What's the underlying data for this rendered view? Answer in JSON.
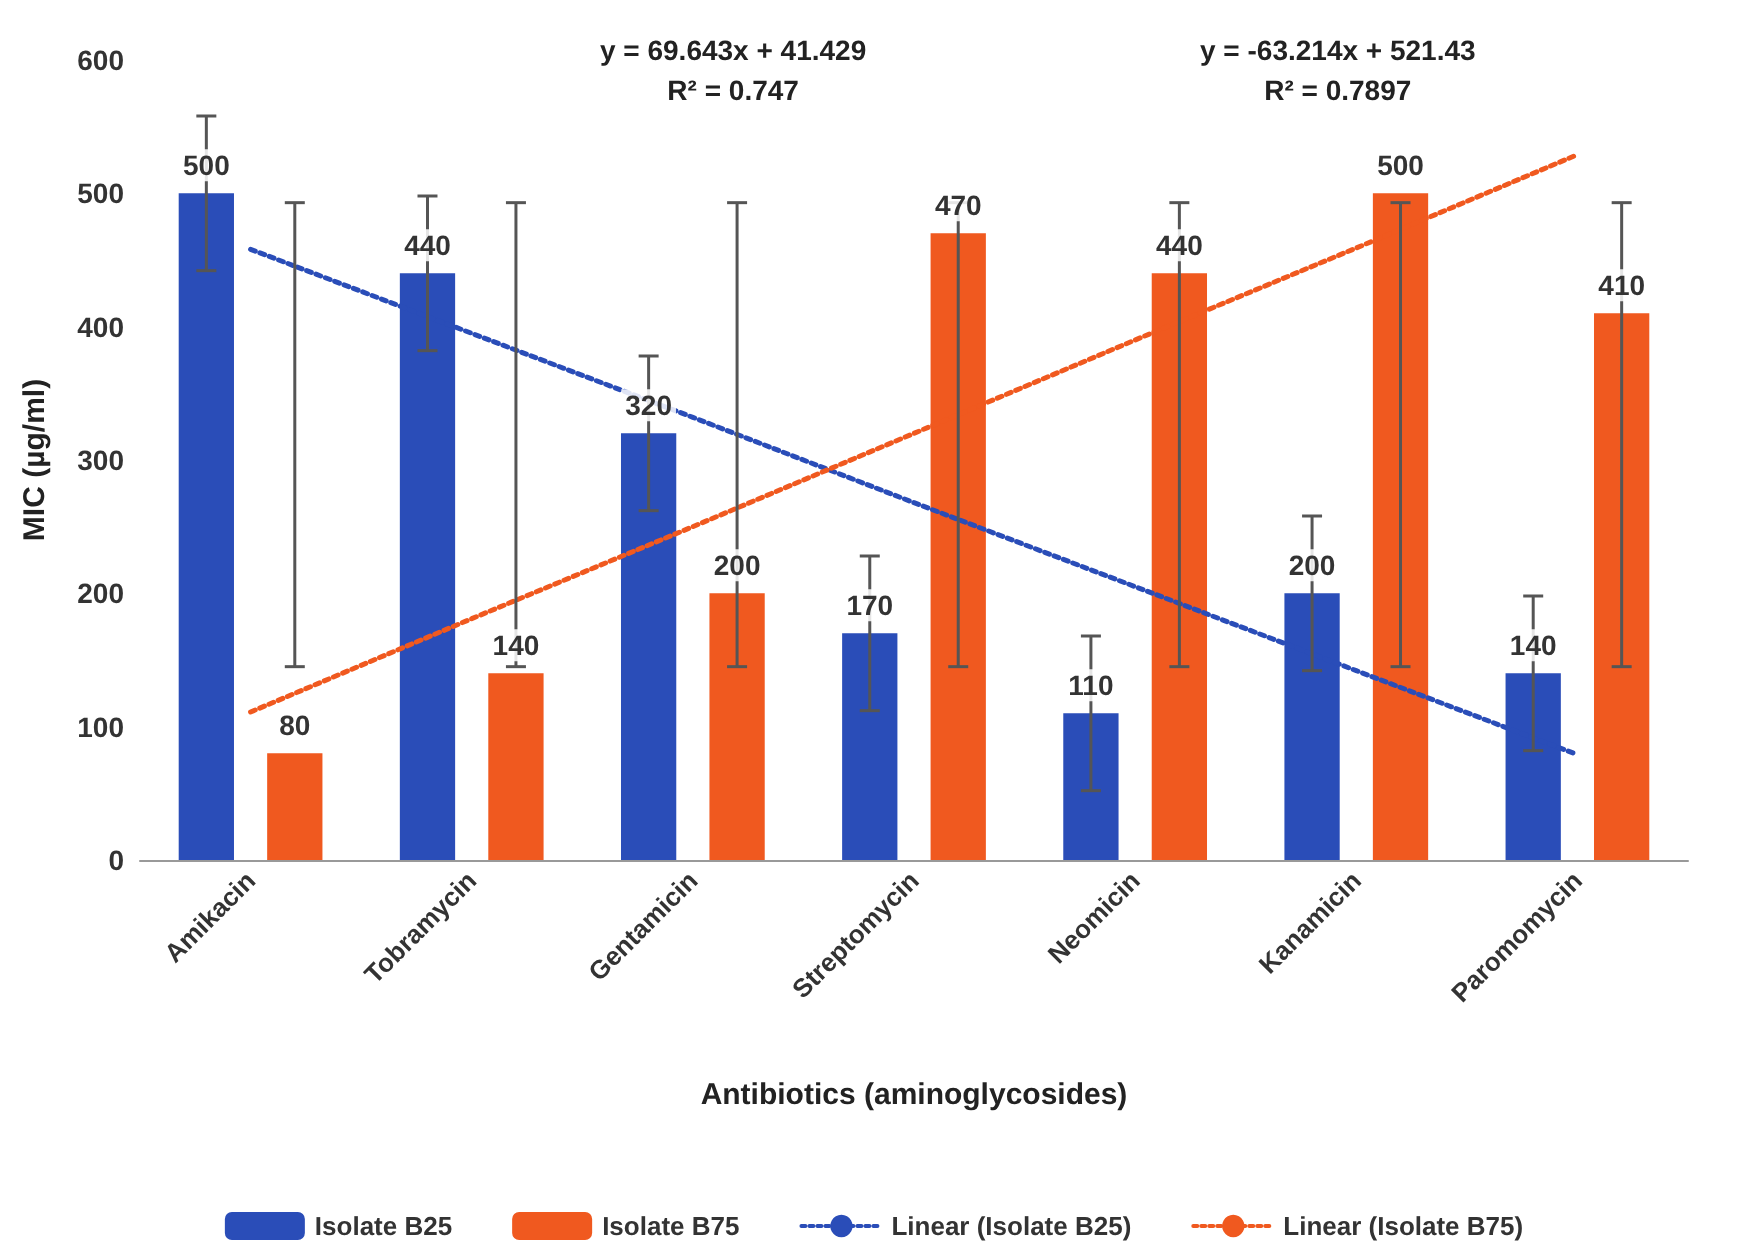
{
  "chart_data": {
    "type": "bar",
    "xlabel": "Antibiotics (aminoglycosides)",
    "ylabel": "MIC (µg/ml)",
    "categories": [
      "Amikacin",
      "Tobramycin",
      "Gentamicin",
      "Streptomycin",
      "Neomicin",
      "Kanamicin",
      "Paromomycin"
    ],
    "series": [
      {
        "name": "Isolate B25",
        "color": "#2a4db8",
        "values": [
          500,
          440,
          320,
          170,
          110,
          200,
          140
        ],
        "errors": [
          58,
          58,
          58,
          58,
          58,
          58,
          58
        ],
        "value_labels": [
          "500",
          "440",
          "320",
          "170",
          "110",
          "200",
          "140"
        ]
      },
      {
        "name": "Isolate B75",
        "color": "#f0591f",
        "values": [
          80,
          140,
          200,
          470,
          440,
          500,
          410
        ],
        "errors": [
          [
            145,
            493
          ],
          [
            145,
            493
          ],
          [
            145,
            493
          ],
          [
            145,
            493
          ],
          [
            145,
            493
          ],
          [
            145,
            493
          ],
          [
            145,
            493
          ]
        ],
        "value_labels": [
          "80",
          "140",
          "200",
          "470",
          "440",
          "500",
          "410"
        ]
      },
      {
        "name": "Linear (Isolate B25)",
        "type": "line",
        "color": "#2a4db8",
        "line_style": "dotted",
        "values": [
          458,
          395,
          332,
          268,
          205,
          142,
          79
        ]
      },
      {
        "name": "Linear (Isolate B75)",
        "type": "line",
        "color": "#f0591f",
        "line_style": "dotted",
        "values": [
          111,
          181,
          250,
          320,
          390,
          459,
          529
        ]
      }
    ],
    "annotations": [
      "y = 69.643x + 41.429\nR² = 0.747",
      "y = -63.214x + 521.43\nR² = 0.7897"
    ],
    "ylim": [
      0,
      600
    ],
    "yticks": [
      0,
      100,
      200,
      300,
      400,
      500,
      600
    ],
    "legend": "bottom",
    "grid": false,
    "marker": "none"
  }
}
